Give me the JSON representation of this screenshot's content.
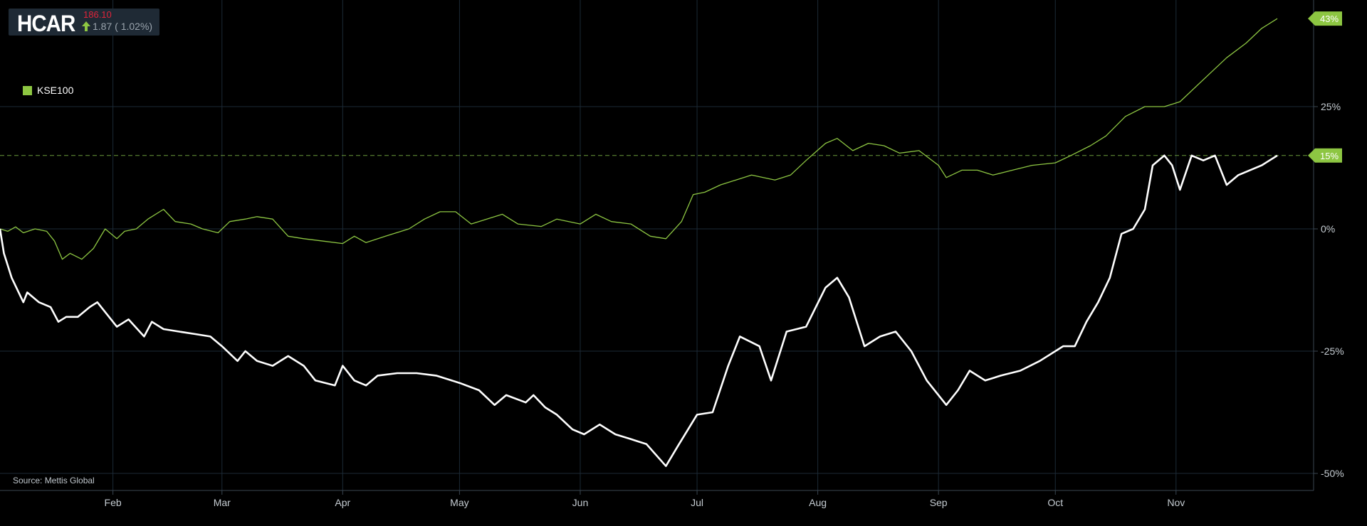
{
  "ticker": {
    "symbol": "HCAR",
    "price": "186.10",
    "change": "1.87 ( 1.02%)"
  },
  "legend": {
    "label": "KSE100"
  },
  "source": "Source: Mettis Global",
  "colors": {
    "kse100": "#8dc642",
    "hcar": "#ffffff",
    "up": "#8dc642",
    "price": "#e0243a"
  },
  "chart_data": {
    "type": "line",
    "x_ticks": [
      "Feb",
      "Mar",
      "Apr",
      "May",
      "Jun",
      "Jul",
      "Aug",
      "Sep",
      "Oct",
      "Nov"
    ],
    "y_ticks": [
      "25%",
      "0%",
      "-25%",
      "-50%"
    ],
    "ylim": [
      -50,
      50
    ],
    "grid": true,
    "legend_position": "top-left",
    "markers": [
      {
        "series": "KSE100",
        "value": 43,
        "label": "43%"
      },
      {
        "series": "HCAR",
        "value": 15,
        "label": "15%",
        "dashed_line": true
      }
    ],
    "series": [
      {
        "name": "KSE100",
        "color": "#8dc642",
        "points": [
          [
            "2023-01-03",
            0
          ],
          [
            "2023-01-05",
            -0.5
          ],
          [
            "2023-01-07",
            0.4
          ],
          [
            "2023-01-09",
            -0.8
          ],
          [
            "2023-01-12",
            0
          ],
          [
            "2023-01-15",
            -0.5
          ],
          [
            "2023-01-17",
            -2.5
          ],
          [
            "2023-01-19",
            -6.2
          ],
          [
            "2023-01-21",
            -5
          ],
          [
            "2023-01-24",
            -6.2
          ],
          [
            "2023-01-27",
            -4
          ],
          [
            "2023-01-30",
            0
          ],
          [
            "2023-02-02",
            -2
          ],
          [
            "2023-02-04",
            -0.5
          ],
          [
            "2023-02-07",
            0
          ],
          [
            "2023-02-10",
            2
          ],
          [
            "2023-02-14",
            4
          ],
          [
            "2023-02-17",
            1.5
          ],
          [
            "2023-02-21",
            1
          ],
          [
            "2023-02-24",
            0
          ],
          [
            "2023-02-28",
            -0.8
          ],
          [
            "2023-03-03",
            1.5
          ],
          [
            "2023-03-07",
            2
          ],
          [
            "2023-03-10",
            2.5
          ],
          [
            "2023-03-14",
            2
          ],
          [
            "2023-03-18",
            -1.5
          ],
          [
            "2023-03-22",
            -2
          ],
          [
            "2023-03-27",
            -2.5
          ],
          [
            "2023-04-01",
            -3
          ],
          [
            "2023-04-04",
            -1.5
          ],
          [
            "2023-04-07",
            -2.8
          ],
          [
            "2023-04-12",
            -1.5
          ],
          [
            "2023-04-18",
            0
          ],
          [
            "2023-04-22",
            2
          ],
          [
            "2023-04-26",
            3.5
          ],
          [
            "2023-04-30",
            3.5
          ],
          [
            "2023-05-04",
            1
          ],
          [
            "2023-05-08",
            2
          ],
          [
            "2023-05-12",
            3
          ],
          [
            "2023-05-16",
            1
          ],
          [
            "2023-05-22",
            0.5
          ],
          [
            "2023-05-26",
            2
          ],
          [
            "2023-06-01",
            1
          ],
          [
            "2023-06-05",
            3
          ],
          [
            "2023-06-09",
            1.5
          ],
          [
            "2023-06-14",
            1
          ],
          [
            "2023-06-19",
            -1.5
          ],
          [
            "2023-06-23",
            -2
          ],
          [
            "2023-06-27",
            1.5
          ],
          [
            "2023-06-30",
            7
          ],
          [
            "2023-07-03",
            7.5
          ],
          [
            "2023-07-07",
            9
          ],
          [
            "2023-07-11",
            10
          ],
          [
            "2023-07-15",
            11
          ],
          [
            "2023-07-21",
            10
          ],
          [
            "2023-07-25",
            11
          ],
          [
            "2023-07-29",
            14
          ],
          [
            "2023-08-03",
            17.5
          ],
          [
            "2023-08-06",
            18.5
          ],
          [
            "2023-08-10",
            16
          ],
          [
            "2023-08-14",
            17.5
          ],
          [
            "2023-08-18",
            17
          ],
          [
            "2023-08-22",
            15.5
          ],
          [
            "2023-08-27",
            16
          ],
          [
            "2023-09-01",
            13
          ],
          [
            "2023-09-03",
            10.5
          ],
          [
            "2023-09-07",
            12
          ],
          [
            "2023-09-11",
            12
          ],
          [
            "2023-09-15",
            11
          ],
          [
            "2023-09-20",
            12
          ],
          [
            "2023-09-25",
            13
          ],
          [
            "2023-10-01",
            13.5
          ],
          [
            "2023-10-05",
            15
          ],
          [
            "2023-10-10",
            17
          ],
          [
            "2023-10-14",
            19
          ],
          [
            "2023-10-19",
            23
          ],
          [
            "2023-10-24",
            25
          ],
          [
            "2023-10-29",
            25
          ],
          [
            "2023-11-02",
            26
          ],
          [
            "2023-11-06",
            29
          ],
          [
            "2023-11-10",
            32
          ],
          [
            "2023-11-14",
            35
          ],
          [
            "2023-11-19",
            38
          ],
          [
            "2023-11-23",
            41
          ],
          [
            "2023-11-27",
            43
          ]
        ]
      },
      {
        "name": "HCAR",
        "color": "#ffffff",
        "points": [
          [
            "2023-01-03",
            0
          ],
          [
            "2023-01-04",
            -5
          ],
          [
            "2023-01-06",
            -10
          ],
          [
            "2023-01-09",
            -15
          ],
          [
            "2023-01-10",
            -13
          ],
          [
            "2023-01-13",
            -15
          ],
          [
            "2023-01-16",
            -16
          ],
          [
            "2023-01-18",
            -19
          ],
          [
            "2023-01-20",
            -18
          ],
          [
            "2023-01-23",
            -18
          ],
          [
            "2023-01-26",
            -16
          ],
          [
            "2023-01-28",
            -15
          ],
          [
            "2023-02-02",
            -20
          ],
          [
            "2023-02-05",
            -18.5
          ],
          [
            "2023-02-09",
            -22
          ],
          [
            "2023-02-11",
            -19
          ],
          [
            "2023-02-14",
            -20.5
          ],
          [
            "2023-02-18",
            -21
          ],
          [
            "2023-02-22",
            -21.5
          ],
          [
            "2023-02-26",
            -22
          ],
          [
            "2023-03-01",
            -24
          ],
          [
            "2023-03-05",
            -27
          ],
          [
            "2023-03-07",
            -25
          ],
          [
            "2023-03-10",
            -27
          ],
          [
            "2023-03-14",
            -28
          ],
          [
            "2023-03-18",
            -26
          ],
          [
            "2023-03-22",
            -28
          ],
          [
            "2023-03-25",
            -31
          ],
          [
            "2023-03-30",
            -32
          ],
          [
            "2023-04-01",
            -28
          ],
          [
            "2023-04-04",
            -31
          ],
          [
            "2023-04-07",
            -32
          ],
          [
            "2023-04-10",
            -30
          ],
          [
            "2023-04-15",
            -29.5
          ],
          [
            "2023-04-20",
            -29.5
          ],
          [
            "2023-04-25",
            -30
          ],
          [
            "2023-05-01",
            -31.5
          ],
          [
            "2023-05-06",
            -33
          ],
          [
            "2023-05-10",
            -36
          ],
          [
            "2023-05-13",
            -34
          ],
          [
            "2023-05-18",
            -35.5
          ],
          [
            "2023-05-20",
            -34
          ],
          [
            "2023-05-23",
            -36.5
          ],
          [
            "2023-05-26",
            -38
          ],
          [
            "2023-05-30",
            -41
          ],
          [
            "2023-06-02",
            -42
          ],
          [
            "2023-06-06",
            -40
          ],
          [
            "2023-06-10",
            -42
          ],
          [
            "2023-06-14",
            -43
          ],
          [
            "2023-06-18",
            -44
          ],
          [
            "2023-06-23",
            -48.5
          ],
          [
            "2023-06-26",
            -44.5
          ],
          [
            "2023-07-01",
            -38
          ],
          [
            "2023-07-05",
            -37.5
          ],
          [
            "2023-07-09",
            -28
          ],
          [
            "2023-07-12",
            -22
          ],
          [
            "2023-07-17",
            -24
          ],
          [
            "2023-07-20",
            -31
          ],
          [
            "2023-07-24",
            -21
          ],
          [
            "2023-07-29",
            -20
          ],
          [
            "2023-08-03",
            -12
          ],
          [
            "2023-08-06",
            -10
          ],
          [
            "2023-08-09",
            -14
          ],
          [
            "2023-08-13",
            -24
          ],
          [
            "2023-08-17",
            -22
          ],
          [
            "2023-08-21",
            -21
          ],
          [
            "2023-08-25",
            -25
          ],
          [
            "2023-08-29",
            -31
          ],
          [
            "2023-09-03",
            -36
          ],
          [
            "2023-09-06",
            -33
          ],
          [
            "2023-09-09",
            -29
          ],
          [
            "2023-09-13",
            -31
          ],
          [
            "2023-09-17",
            -30
          ],
          [
            "2023-09-22",
            -29
          ],
          [
            "2023-09-27",
            -27
          ],
          [
            "2023-10-03",
            -24
          ],
          [
            "2023-10-06",
            -24
          ],
          [
            "2023-10-09",
            -19
          ],
          [
            "2023-10-12",
            -15
          ],
          [
            "2023-10-15",
            -10
          ],
          [
            "2023-10-18",
            -1
          ],
          [
            "2023-10-21",
            0
          ],
          [
            "2023-10-24",
            4
          ],
          [
            "2023-10-26",
            13
          ],
          [
            "2023-10-29",
            15
          ],
          [
            "2023-10-31",
            13
          ],
          [
            "2023-11-02",
            8
          ],
          [
            "2023-11-05",
            15
          ],
          [
            "2023-11-08",
            14
          ],
          [
            "2023-11-11",
            15
          ],
          [
            "2023-11-14",
            9
          ],
          [
            "2023-11-17",
            11
          ],
          [
            "2023-11-20",
            12
          ],
          [
            "2023-11-23",
            13
          ],
          [
            "2023-11-27",
            15
          ]
        ]
      }
    ]
  }
}
